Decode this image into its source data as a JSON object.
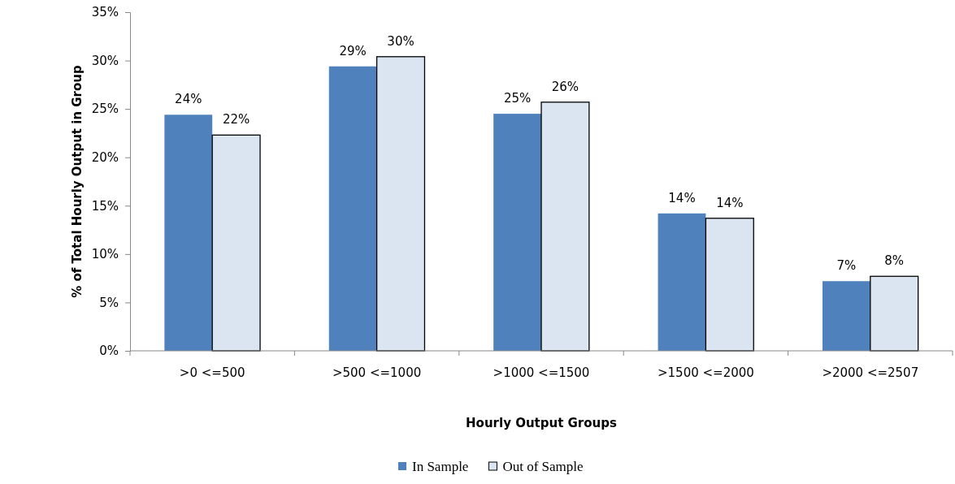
{
  "chart_data": {
    "type": "bar",
    "xlabel": "Hourly Output Groups",
    "ylabel": "% of Total Hourly Output in Group",
    "categories": [
      ">0 <=500",
      ">500 <=1000",
      ">1000 <=1500",
      ">1500 <=2000",
      ">2000 <=2507"
    ],
    "series": [
      {
        "name": "In Sample",
        "color": "#4f81bd",
        "values": [
          24.4,
          29.4,
          24.5,
          14.2,
          7.2
        ],
        "value_labels": [
          "24%",
          "29%",
          "25%",
          "14%",
          "7%"
        ]
      },
      {
        "name": "Out of Sample",
        "color": "#dbe5f1",
        "values": [
          22.3,
          30.4,
          25.7,
          13.7,
          7.7
        ],
        "value_labels": [
          "22%",
          "30%",
          "26%",
          "14%",
          "8%"
        ]
      }
    ],
    "ylim": [
      0,
      35
    ],
    "yticks": [
      {
        "value": 0,
        "label": "0%"
      },
      {
        "value": 5,
        "label": "5%"
      },
      {
        "value": 10,
        "label": "10%"
      },
      {
        "value": 15,
        "label": "15%"
      },
      {
        "value": 20,
        "label": "20%"
      },
      {
        "value": 25,
        "label": "25%"
      },
      {
        "value": 30,
        "label": "30%"
      },
      {
        "value": 35,
        "label": "35%"
      }
    ],
    "grid": false,
    "legend": "bottom"
  }
}
